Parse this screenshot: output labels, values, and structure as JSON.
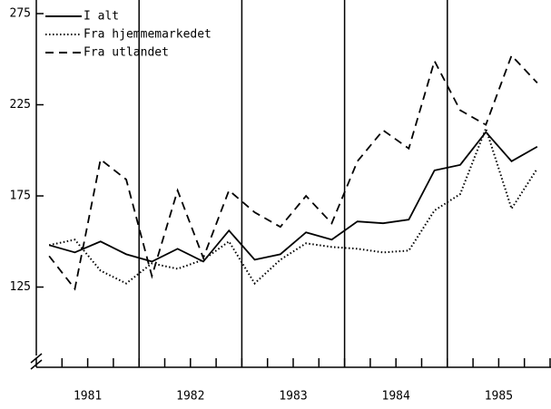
{
  "chart_data": {
    "type": "line",
    "categories": [
      null,
      null,
      null,
      null,
      null,
      null,
      null,
      null,
      null,
      null,
      null,
      null,
      null,
      null,
      null,
      null,
      null,
      null,
      null,
      null
    ],
    "year_labels": [
      "1981",
      "1982",
      "1983",
      "1984",
      "1985"
    ],
    "series": [
      {
        "name": "I alt",
        "color": "#000000",
        "dash": "solid",
        "values": [
          148,
          144,
          150,
          143,
          139,
          146,
          139,
          156,
          140,
          143,
          155,
          151,
          161,
          160,
          162,
          189,
          192,
          210,
          194,
          202
        ]
      },
      {
        "name": "Fra hjemmemarkedet",
        "color": "#000000",
        "dash": "dotted",
        "values": [
          148,
          151,
          134,
          127,
          138,
          135,
          140,
          150,
          127,
          140,
          149,
          147,
          146,
          144,
          145,
          167,
          176,
          212,
          168,
          190
        ]
      },
      {
        "name": "Fra utlandet",
        "color": "#000000",
        "dash": "dashed",
        "values": [
          142,
          124,
          195,
          184,
          131,
          178,
          141,
          178,
          166,
          158,
          175,
          160,
          194,
          211,
          201,
          249,
          222,
          214,
          252,
          237
        ]
      }
    ],
    "ylim": [
      81,
      275
    ],
    "yticks": [
      125,
      175,
      225,
      275
    ],
    "legend": "upper left"
  }
}
